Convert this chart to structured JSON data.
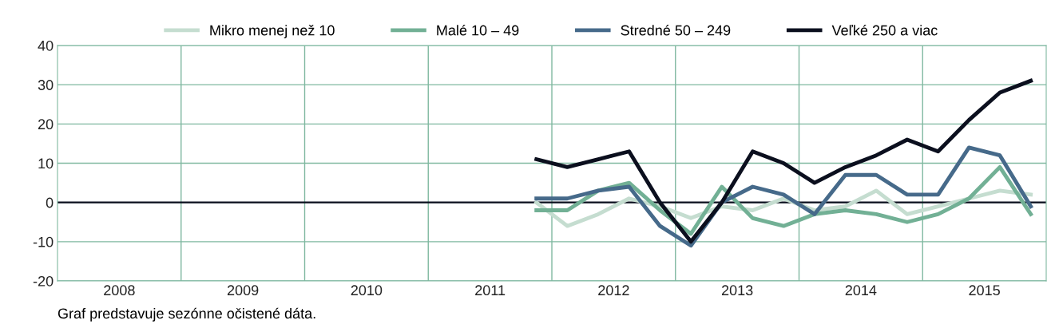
{
  "chart_data": {
    "type": "line",
    "x": [
      2011.875,
      2012.125,
      2012.375,
      2012.625,
      2012.875,
      2013.125,
      2013.375,
      2013.625,
      2013.875,
      2014.125,
      2014.375,
      2014.625,
      2014.875,
      2015.125,
      2015.375,
      2015.625,
      2015.875
    ],
    "series": [
      {
        "name": "Mikro menej než 10",
        "color": "#c5ddd0",
        "values": [
          0,
          -6,
          -3,
          1,
          -1,
          -4,
          -1,
          -2,
          1,
          -2,
          -1,
          3,
          -3,
          -1,
          1,
          3,
          2
        ]
      },
      {
        "name": "Malé 10 – 49",
        "color": "#72b095",
        "values": [
          -2,
          -2,
          3,
          5,
          -2,
          -8,
          4,
          -4,
          -6,
          -3,
          -2,
          -3,
          -5,
          -3,
          1,
          9,
          -3
        ]
      },
      {
        "name": "Stredné 50 – 249",
        "color": "#466a8a",
        "values": [
          1,
          1,
          3,
          4,
          -6,
          -11,
          0,
          4,
          2,
          -3,
          7,
          7,
          2,
          2,
          14,
          12,
          -1
        ]
      },
      {
        "name": "Veľké 250 a viac",
        "color": "#0b0f1e",
        "values": [
          11,
          9,
          11,
          13,
          0,
          -10,
          0,
          13,
          10,
          5,
          9,
          12,
          16,
          13,
          21,
          28,
          31
        ]
      }
    ],
    "xlim": [
      2008,
      2016
    ],
    "xticks": [
      {
        "value": 2008.5,
        "label": "2008"
      },
      {
        "value": 2009.5,
        "label": "2009"
      },
      {
        "value": 2010.5,
        "label": "2010"
      },
      {
        "value": 2011.5,
        "label": "2011"
      },
      {
        "value": 2012.5,
        "label": "2012"
      },
      {
        "value": 2013.5,
        "label": "2013"
      },
      {
        "value": 2014.5,
        "label": "2014"
      },
      {
        "value": 2015.5,
        "label": "2015"
      },
      {
        "value": 2009,
        "label": null
      },
      {
        "value": 2010,
        "label": null
      },
      {
        "value": 2011,
        "label": null
      },
      {
        "value": 2012,
        "label": null
      },
      {
        "value": 2013,
        "label": null
      },
      {
        "value": 2014,
        "label": null
      },
      {
        "value": 2015,
        "label": null
      }
    ],
    "ylim": [
      -20,
      40
    ],
    "yticks": [
      -20,
      -10,
      0,
      10,
      20,
      30,
      40
    ],
    "grid": true,
    "legend": "top",
    "line_style": "solid",
    "marker": "none",
    "ref_lines": [
      {
        "axis": "y",
        "value": 0,
        "color": "#0b0f1e"
      }
    ],
    "annotations": [
      "Graf predstavuje sezónne očistené dáta."
    ]
  }
}
